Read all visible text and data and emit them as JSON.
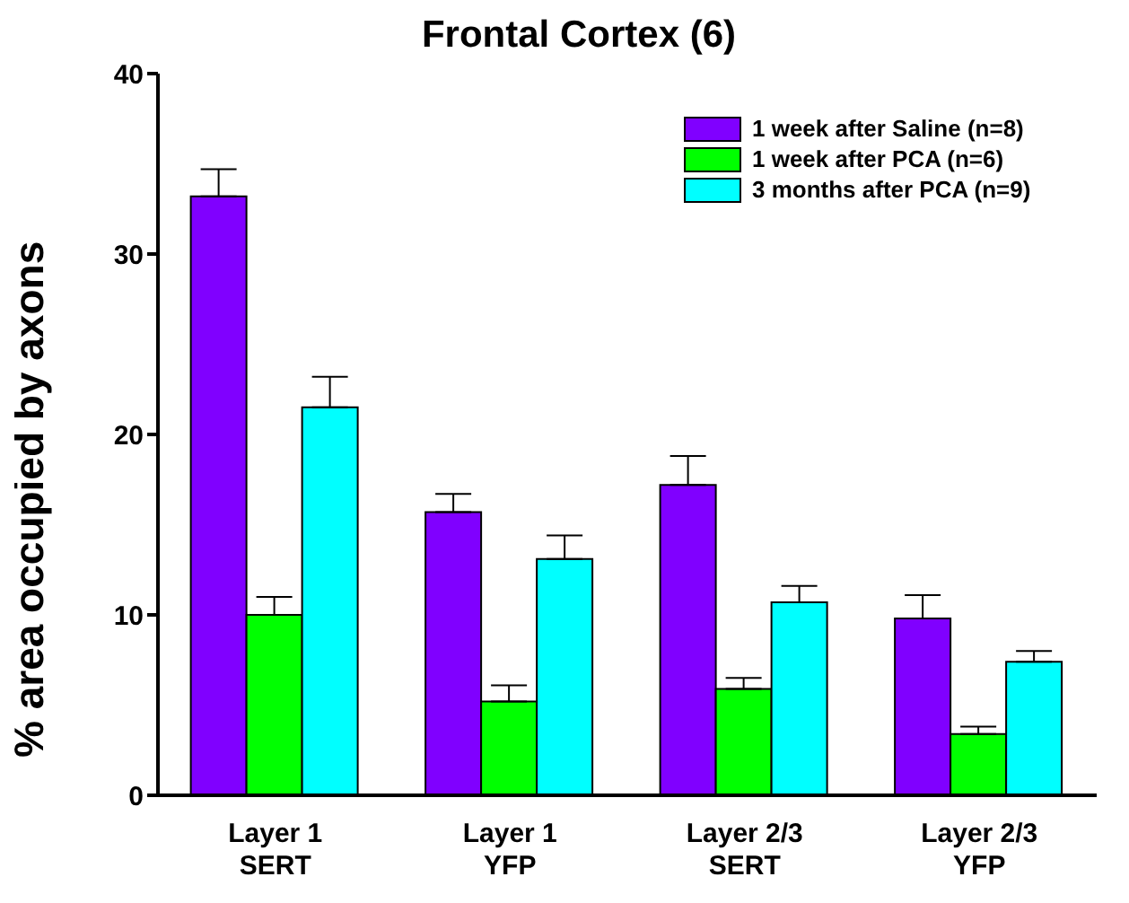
{
  "chart_data": {
    "type": "bar",
    "title": "Frontal Cortex (6)",
    "ylabel": "% area occupied by axons",
    "categories": [
      "Layer 1 SERT",
      "Layer 1 YFP",
      "Layer 2/3 SERT",
      "Layer 2/3 YFP"
    ],
    "series": [
      {
        "name": "1 week after Saline (n=8)",
        "color": "#8000ff",
        "values": [
          33.2,
          15.7,
          17.2,
          9.8
        ],
        "errors": [
          1.5,
          1.0,
          1.6,
          1.3
        ]
      },
      {
        "name": "1 week after PCA (n=6)",
        "color": "#00ff00",
        "values": [
          10.0,
          5.2,
          5.9,
          3.4
        ],
        "errors": [
          1.0,
          0.9,
          0.6,
          0.4
        ]
      },
      {
        "name": "3 months after PCA (n=9)",
        "color": "#00ffff",
        "values": [
          21.5,
          13.1,
          10.7,
          7.4
        ],
        "errors": [
          1.7,
          1.3,
          0.9,
          0.6
        ]
      }
    ],
    "ylim": [
      0,
      40
    ],
    "yticks": [
      0,
      10,
      20,
      30,
      40
    ],
    "grid": false,
    "legend": "top right"
  }
}
